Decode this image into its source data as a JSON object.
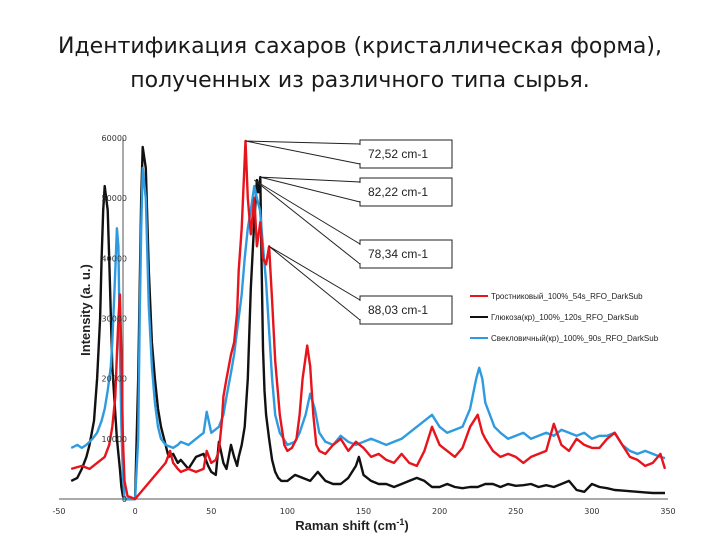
{
  "title": {
    "line1": "Идентификация сахаров (кристаллическая форма),",
    "line2": "полученных из различного типа сырья."
  },
  "chart_data": {
    "type": "line",
    "xlabel": "Raman shift (cm-1)",
    "ylabel": "Intensity (a. u.)",
    "xlim": [
      -50,
      350
    ],
    "ylim": [
      0,
      60000
    ],
    "xticks": [
      "-50",
      "0",
      "50",
      "100",
      "150",
      "200",
      "250",
      "300",
      "350"
    ],
    "yticks": [
      "0",
      "10000",
      "20000",
      "30000",
      "40000",
      "50000",
      "60000"
    ],
    "grid": false,
    "legend_position": "right",
    "annotations": [
      {
        "text": "72,52 cm-1",
        "x": 72.5,
        "y": 59500
      },
      {
        "text": "82,22 cm-1",
        "x": 82.2,
        "y": 53500
      },
      {
        "text": "78,34 cm-1",
        "x": 78.3,
        "y": 53000
      },
      {
        "text": "88,03 cm-1",
        "x": 88.0,
        "y": 42000
      }
    ],
    "series": [
      {
        "name": "Тростниковый_100%_54s_RFO_DarkSub",
        "color": "#e8141c",
        "x": [
          -42,
          -35,
          -30,
          -25,
          -20,
          -17,
          -15,
          -13,
          -12,
          -11,
          -10,
          -9,
          -8,
          -7,
          -5,
          0,
          20,
          23,
          25,
          28,
          30,
          35,
          40,
          45,
          47,
          50,
          53,
          55,
          57,
          58,
          60,
          63,
          65,
          67,
          68,
          70,
          72.5,
          74,
          76,
          78.3,
          80,
          82.2,
          84,
          86,
          88,
          90,
          92,
          95,
          98,
          100,
          103,
          106,
          108,
          110,
          113,
          115,
          117,
          119,
          121,
          125,
          130,
          135,
          140,
          145,
          150,
          155,
          160,
          165,
          170,
          175,
          180,
          185,
          190,
          195,
          200,
          205,
          210,
          215,
          220,
          225,
          228,
          230,
          235,
          240,
          245,
          250,
          255,
          260,
          265,
          270,
          275,
          280,
          285,
          290,
          295,
          300,
          305,
          310,
          315,
          320,
          325,
          330,
          335,
          340,
          345,
          348
        ],
        "y": [
          5000,
          5500,
          5000,
          6000,
          7000,
          9000,
          12000,
          17000,
          24000,
          30000,
          34000,
          24000,
          10000,
          3000,
          500,
          0,
          6000,
          8000,
          6000,
          5000,
          4500,
          5000,
          4500,
          5000,
          8000,
          6000,
          6500,
          8000,
          13000,
          17000,
          20000,
          24000,
          26000,
          31000,
          38000,
          45000,
          59500,
          50000,
          44000,
          50000,
          42000,
          46000,
          40000,
          39000,
          42000,
          33000,
          23000,
          14000,
          9000,
          8000,
          8500,
          10000,
          14000,
          20000,
          25500,
          22000,
          14000,
          9000,
          8000,
          7500,
          9000,
          10000,
          8000,
          9500,
          8500,
          7000,
          7500,
          6500,
          6000,
          7500,
          6000,
          5500,
          8000,
          12000,
          9000,
          8000,
          7000,
          8500,
          12000,
          14000,
          11000,
          10000,
          8000,
          7000,
          7500,
          7000,
          6000,
          7000,
          7500,
          8000,
          12500,
          9000,
          8000,
          10000,
          9000,
          8500,
          8500,
          10000,
          11000,
          9000,
          7000,
          6500,
          5500,
          6000,
          7500,
          5000
        ]
      },
      {
        "name": "Глюкоза(кр)_100%_120s_RFO_DarkSub",
        "color": "#111111",
        "x": [
          -42,
          -38,
          -35,
          -32,
          -30,
          -27,
          -25,
          -23,
          -22,
          -21,
          -20,
          -19,
          -18,
          -17,
          -15,
          -12,
          -10,
          -9,
          -8,
          -7,
          -5,
          0,
          2,
          4,
          5,
          7,
          9,
          11,
          13,
          15,
          17,
          20,
          22,
          25,
          28,
          30,
          35,
          40,
          45,
          48,
          50,
          53,
          55,
          58,
          60,
          63,
          65,
          67,
          68,
          70,
          72,
          74,
          76,
          78,
          80,
          81,
          82.2,
          83,
          84,
          85,
          86,
          88,
          90,
          92,
          94,
          96,
          100,
          105,
          110,
          115,
          120,
          125,
          130,
          135,
          140,
          145,
          147,
          150,
          155,
          160,
          165,
          170,
          175,
          180,
          185,
          190,
          195,
          200,
          205,
          210,
          215,
          220,
          225,
          230,
          235,
          240,
          245,
          250,
          255,
          260,
          265,
          270,
          275,
          280,
          285,
          290,
          295,
          300,
          305,
          310,
          315,
          320,
          325,
          330,
          335,
          340,
          345,
          348
        ],
        "y": [
          3000,
          3500,
          5000,
          7000,
          9000,
          13000,
          20000,
          30000,
          40000,
          48000,
          52000,
          50000,
          48000,
          40000,
          22000,
          10000,
          5000,
          2000,
          500,
          0,
          0,
          0,
          20000,
          50000,
          58500,
          55000,
          38000,
          26000,
          20000,
          15000,
          12000,
          9000,
          7000,
          7500,
          6000,
          6500,
          5000,
          7000,
          7500,
          5500,
          4500,
          4000,
          9500,
          6000,
          5000,
          9000,
          7000,
          5500,
          7000,
          9000,
          12000,
          20000,
          35000,
          45000,
          53000,
          51000,
          53500,
          40000,
          25000,
          18000,
          14000,
          10000,
          6500,
          4500,
          3500,
          3000,
          3000,
          4000,
          3500,
          3000,
          4500,
          3000,
          2500,
          2500,
          3500,
          5500,
          7000,
          4000,
          3000,
          2500,
          2500,
          2000,
          2500,
          3000,
          3500,
          3000,
          2000,
          2000,
          2500,
          2000,
          1800,
          2000,
          2000,
          2500,
          2500,
          2000,
          2500,
          2200,
          2300,
          2500,
          2000,
          2300,
          2000,
          2500,
          3000,
          1500,
          1200,
          2500,
          2000,
          1800,
          1500,
          1400,
          1300,
          1200,
          1100,
          1000,
          1000,
          1000
        ]
      },
      {
        "name": "Свекловичный(кр)_100%_90s_RFO_DarkSub",
        "color": "#2e9be0",
        "x": [
          -42,
          -38,
          -35,
          -32,
          -30,
          -28,
          -25,
          -22,
          -20,
          -18,
          -16,
          -15,
          -14,
          -13,
          -12,
          -11,
          -10,
          -9,
          -8,
          -7,
          -5,
          0,
          2,
          3,
          4,
          5,
          7,
          9,
          11,
          13,
          15,
          17,
          20,
          25,
          28,
          30,
          35,
          40,
          45,
          47,
          50,
          55,
          58,
          60,
          63,
          65,
          67,
          70,
          72,
          74,
          76,
          78.3,
          80,
          82,
          84,
          86,
          88,
          90,
          92,
          95,
          100,
          105,
          108,
          112,
          115,
          118,
          121,
          125,
          130,
          135,
          140,
          145,
          150,
          155,
          160,
          165,
          170,
          175,
          180,
          185,
          190,
          195,
          200,
          205,
          210,
          215,
          220,
          224,
          226,
          228,
          230,
          233,
          236,
          240,
          245,
          250,
          255,
          260,
          265,
          270,
          275,
          280,
          285,
          290,
          295,
          300,
          305,
          310,
          315,
          320,
          325,
          330,
          335,
          340,
          345,
          348
        ],
        "y": [
          8500,
          9000,
          8500,
          9000,
          9500,
          10000,
          11000,
          13000,
          15000,
          18000,
          22000,
          26000,
          32000,
          38000,
          45000,
          42000,
          25000,
          12000,
          4000,
          0,
          0,
          0,
          10000,
          30000,
          45000,
          55000,
          50000,
          32000,
          22000,
          16000,
          12000,
          10000,
          9000,
          8500,
          9000,
          9500,
          9000,
          10000,
          11000,
          14500,
          11000,
          12000,
          14000,
          17000,
          21000,
          24000,
          28000,
          34000,
          40000,
          45000,
          48000,
          52000,
          50000,
          48000,
          42000,
          36000,
          28000,
          20000,
          14000,
          11000,
          9000,
          9500,
          11000,
          14000,
          17500,
          15000,
          11000,
          9500,
          9000,
          10500,
          9500,
          9000,
          9500,
          10000,
          9500,
          9000,
          9500,
          10000,
          11000,
          12000,
          13000,
          14000,
          12000,
          11000,
          11500,
          12000,
          15000,
          20000,
          21800,
          20000,
          16000,
          14000,
          12000,
          11000,
          10000,
          10500,
          11000,
          10000,
          10500,
          11000,
          10500,
          11500,
          11000,
          10500,
          11000,
          10000,
          10500,
          10500,
          11000,
          9000,
          8000,
          7500,
          8000,
          7500,
          7000,
          6800
        ]
      }
    ]
  }
}
